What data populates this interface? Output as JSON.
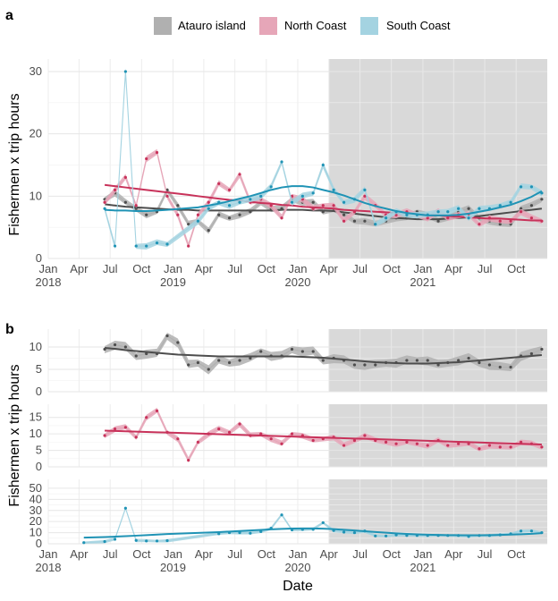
{
  "panel_tags": [
    "a",
    "b"
  ],
  "legend": [
    {
      "name": "Atauro island",
      "color": "#4d4d4d",
      "fill": "#b0b0b0"
    },
    {
      "name": "North Coast",
      "color": "#c8325a",
      "fill": "#e6a6b8"
    },
    {
      "name": "South Coast",
      "color": "#1f93b5",
      "fill": "#a4d3e1"
    }
  ],
  "ylabel": "Fishermen x trip hours",
  "xlabel": "Date",
  "x_ticks": [
    {
      "date": "2018-01",
      "line1": "Jan",
      "line2": "2018"
    },
    {
      "date": "2018-04",
      "line1": "Apr",
      "line2": ""
    },
    {
      "date": "2018-07",
      "line1": "Jul",
      "line2": ""
    },
    {
      "date": "2018-10",
      "line1": "Oct",
      "line2": ""
    },
    {
      "date": "2019-01",
      "line1": "Jan",
      "line2": "2019"
    },
    {
      "date": "2019-04",
      "line1": "Apr",
      "line2": ""
    },
    {
      "date": "2019-07",
      "line1": "Jul",
      "line2": ""
    },
    {
      "date": "2019-10",
      "line1": "Oct",
      "line2": ""
    },
    {
      "date": "2020-01",
      "line1": "Jan",
      "line2": "2020"
    },
    {
      "date": "2020-04",
      "line1": "Apr",
      "line2": ""
    },
    {
      "date": "2020-07",
      "line1": "Jul",
      "line2": ""
    },
    {
      "date": "2020-10",
      "line1": "Oct",
      "line2": ""
    },
    {
      "date": "2021-01",
      "line1": "Jan",
      "line2": "2021"
    },
    {
      "date": "2021-04",
      "line1": "Apr",
      "line2": ""
    },
    {
      "date": "2021-07",
      "line1": "Jul",
      "line2": ""
    },
    {
      "date": "2021-10",
      "line1": "Oct",
      "line2": ""
    }
  ],
  "shaded_period": {
    "start": "2020-04-01",
    "end": "2021-12-31",
    "color": "#d9d9d9"
  },
  "chart_data": [
    {
      "type": "line",
      "panel": "a",
      "xlim": [
        "2018-01-01",
        "2021-12-31"
      ],
      "ylim": [
        0,
        32
      ],
      "y_ticks": [
        0,
        10,
        20,
        30
      ],
      "grid": true,
      "legend_position": "top",
      "series": [
        {
          "name": "Atauro island",
          "x": [
            "2018-06-15",
            "2018-07-15",
            "2018-08-15",
            "2018-09-15",
            "2018-10-15",
            "2018-11-15",
            "2018-12-15",
            "2019-01-15",
            "2019-02-15",
            "2019-03-15",
            "2019-04-15",
            "2019-05-15",
            "2019-06-15",
            "2019-07-15",
            "2019-08-15",
            "2019-09-15",
            "2019-10-15",
            "2019-11-15",
            "2019-12-15",
            "2020-01-15",
            "2020-02-15",
            "2020-03-15",
            "2020-04-15",
            "2020-05-15",
            "2020-06-15",
            "2020-07-15",
            "2020-08-15",
            "2020-09-15",
            "2020-10-15",
            "2020-11-15",
            "2020-12-15",
            "2021-01-15",
            "2021-02-15",
            "2021-03-15",
            "2021-04-15",
            "2021-05-15",
            "2021-06-15",
            "2021-07-15",
            "2021-08-15",
            "2021-09-15",
            "2021-10-15",
            "2021-11-15",
            "2021-12-15"
          ],
          "y": [
            9.5,
            10.5,
            9.0,
            8.0,
            7.0,
            7.5,
            11.0,
            8.5,
            5.5,
            6.0,
            4.5,
            7.0,
            6.5,
            7.0,
            7.5,
            9.0,
            8.0,
            8.0,
            9.5,
            9.0,
            9.0,
            7.5,
            8.0,
            7.0,
            6.0,
            6.0,
            5.5,
            6.0,
            6.5,
            6.5,
            7.5,
            7.0,
            6.0,
            6.5,
            7.5,
            8.0,
            6.5,
            6.0,
            5.5,
            5.5,
            8.0,
            8.5,
            9.5
          ],
          "trend": [
            8.7,
            8.5,
            8.3,
            8.2,
            8.1,
            8.0,
            7.9,
            7.8,
            7.8,
            7.7,
            7.7,
            7.7,
            7.7,
            7.7,
            7.7,
            7.7,
            7.7,
            7.8,
            7.8,
            7.8,
            7.7,
            7.7,
            7.6,
            7.4,
            7.2,
            7.0,
            6.8,
            6.6,
            6.5,
            6.4,
            6.3,
            6.3,
            6.3,
            6.4,
            6.5,
            6.6,
            6.8,
            7.0,
            7.2,
            7.4,
            7.6,
            7.8,
            8.0
          ]
        },
        {
          "name": "North Coast",
          "x": [
            "2018-06-15",
            "2018-07-15",
            "2018-08-15",
            "2018-09-15",
            "2018-10-15",
            "2018-11-15",
            "2018-12-15",
            "2019-01-15",
            "2019-02-15",
            "2019-03-15",
            "2019-04-15",
            "2019-05-15",
            "2019-06-15",
            "2019-07-15",
            "2019-08-15",
            "2019-09-15",
            "2019-10-15",
            "2019-11-15",
            "2019-12-15",
            "2020-01-15",
            "2020-02-15",
            "2020-03-15",
            "2020-04-15",
            "2020-05-15",
            "2020-06-15",
            "2020-07-15",
            "2020-08-15",
            "2020-09-15",
            "2020-10-15",
            "2020-11-15",
            "2020-12-15",
            "2021-01-15",
            "2021-02-15",
            "2021-03-15",
            "2021-04-15",
            "2021-05-15",
            "2021-06-15",
            "2021-07-15",
            "2021-08-15",
            "2021-09-15",
            "2021-10-15",
            "2021-11-15",
            "2021-12-15"
          ],
          "y": [
            9.0,
            11.0,
            13.0,
            8.5,
            16.0,
            17.0,
            10.0,
            7.0,
            2.0,
            7.0,
            9.0,
            12.0,
            11.0,
            13.5,
            9.0,
            9.5,
            8.5,
            6.5,
            10.0,
            9.5,
            8.0,
            8.5,
            8.5,
            6.0,
            7.5,
            10.0,
            8.5,
            7.0,
            7.0,
            7.5,
            7.0,
            6.5,
            7.5,
            6.5,
            7.0,
            7.0,
            5.5,
            6.5,
            6.0,
            6.0,
            7.5,
            6.5,
            6.0
          ],
          "trend": [
            11.8,
            11.6,
            11.4,
            11.2,
            11.0,
            10.8,
            10.6,
            10.4,
            10.2,
            10.0,
            9.8,
            9.6,
            9.4,
            9.3,
            9.1,
            8.9,
            8.8,
            8.6,
            8.5,
            8.3,
            8.2,
            8.1,
            8.0,
            7.8,
            7.7,
            7.6,
            7.5,
            7.4,
            7.3,
            7.2,
            7.1,
            7.0,
            6.9,
            6.8,
            6.7,
            6.6,
            6.5,
            6.4,
            6.4,
            6.3,
            6.2,
            6.1,
            6.1
          ]
        },
        {
          "name": "South Coast",
          "x": [
            "2018-06-15",
            "2018-07-15",
            "2018-08-15",
            "2018-09-15",
            "2018-10-15",
            "2018-11-15",
            "2018-12-15",
            "2019-03-15",
            "2019-04-15",
            "2019-05-15",
            "2019-06-15",
            "2019-07-15",
            "2019-08-15",
            "2019-09-15",
            "2019-10-15",
            "2019-11-15",
            "2019-12-15",
            "2020-01-15",
            "2020-02-15",
            "2020-03-15",
            "2020-04-15",
            "2020-05-15",
            "2020-06-15",
            "2020-07-15",
            "2020-08-15",
            "2020-09-15",
            "2020-10-15",
            "2020-11-15",
            "2020-12-15",
            "2021-01-15",
            "2021-02-15",
            "2021-03-15",
            "2021-04-15",
            "2021-05-15",
            "2021-06-15",
            "2021-07-15",
            "2021-08-15",
            "2021-09-15",
            "2021-10-15",
            "2021-11-15",
            "2021-12-15"
          ],
          "y": [
            8.0,
            2.0,
            30.0,
            2.0,
            2.0,
            2.5,
            2.3,
            6.0,
            8.0,
            9.0,
            8.5,
            9.0,
            9.5,
            10.0,
            11.5,
            15.5,
            9.0,
            10.0,
            10.5,
            15.0,
            11.0,
            9.0,
            9.5,
            11.0,
            5.5,
            6.5,
            7.5,
            7.0,
            7.0,
            7.0,
            7.5,
            7.5,
            8.0,
            6.5,
            8.0,
            8.0,
            8.5,
            9.0,
            11.5,
            11.5,
            10.5
          ],
          "trend": [
            7.8,
            7.7,
            7.7,
            7.6,
            7.6,
            7.7,
            7.8,
            8.2,
            8.5,
            8.8,
            9.2,
            9.6,
            10.0,
            10.5,
            11.0,
            11.4,
            11.6,
            11.6,
            11.4,
            11.0,
            10.6,
            10.1,
            9.5,
            8.9,
            8.4,
            8.0,
            7.6,
            7.3,
            7.1,
            6.9,
            6.9,
            6.9,
            7.0,
            7.2,
            7.5,
            7.8,
            8.2,
            8.6,
            9.2,
            9.9,
            10.8
          ]
        }
      ]
    },
    {
      "type": "line",
      "panel": "b",
      "facet": "Atauro island",
      "ylim": [
        0,
        14
      ],
      "y_ticks": [
        0,
        5,
        10
      ],
      "series": [
        {
          "name": "Atauro island",
          "x": [
            "2018-06-15",
            "2018-07-15",
            "2018-08-15",
            "2018-09-15",
            "2018-10-15",
            "2018-11-15",
            "2018-12-15",
            "2019-01-15",
            "2019-02-15",
            "2019-03-15",
            "2019-04-15",
            "2019-05-15",
            "2019-06-15",
            "2019-07-15",
            "2019-08-15",
            "2019-09-15",
            "2019-10-15",
            "2019-11-15",
            "2019-12-15",
            "2020-01-15",
            "2020-02-15",
            "2020-03-15",
            "2020-04-15",
            "2020-05-15",
            "2020-06-15",
            "2020-07-15",
            "2020-08-15",
            "2020-09-15",
            "2020-10-15",
            "2020-11-15",
            "2020-12-15",
            "2021-01-15",
            "2021-02-15",
            "2021-03-15",
            "2021-04-15",
            "2021-05-15",
            "2021-06-15",
            "2021-07-15",
            "2021-08-15",
            "2021-09-15",
            "2021-10-15",
            "2021-11-15",
            "2021-12-15"
          ],
          "y": [
            9.5,
            10.5,
            10.0,
            8.0,
            8.5,
            8.5,
            12.5,
            11.0,
            6.0,
            6.5,
            5.0,
            7.0,
            6.5,
            7.0,
            7.5,
            9.0,
            8.0,
            8.0,
            9.5,
            9.0,
            9.0,
            7.0,
            7.5,
            7.0,
            6.0,
            6.0,
            6.0,
            6.5,
            6.5,
            7.0,
            7.0,
            7.0,
            6.0,
            6.5,
            7.0,
            7.5,
            6.5,
            6.0,
            5.5,
            5.5,
            8.0,
            8.5,
            9.5
          ],
          "trend": [
            9.8,
            9.6,
            9.3,
            9.1,
            8.9,
            8.7,
            8.5,
            8.3,
            8.2,
            8.1,
            8.0,
            7.9,
            7.9,
            7.9,
            7.9,
            7.9,
            7.9,
            7.9,
            7.9,
            7.8,
            7.7,
            7.6,
            7.4,
            7.2,
            7.0,
            6.8,
            6.6,
            6.5,
            6.4,
            6.3,
            6.3,
            6.3,
            6.4,
            6.5,
            6.6,
            6.8,
            7.0,
            7.2,
            7.4,
            7.6,
            7.8,
            8.0,
            8.2
          ]
        }
      ]
    },
    {
      "type": "line",
      "panel": "b",
      "facet": "North Coast",
      "ylim": [
        0,
        19
      ],
      "y_ticks": [
        0,
        5,
        10,
        15
      ],
      "series": [
        {
          "name": "North Coast",
          "x": [
            "2018-06-15",
            "2018-07-15",
            "2018-08-15",
            "2018-09-15",
            "2018-10-15",
            "2018-11-15",
            "2018-12-15",
            "2019-01-15",
            "2019-02-15",
            "2019-03-15",
            "2019-04-15",
            "2019-05-15",
            "2019-06-15",
            "2019-07-15",
            "2019-08-15",
            "2019-09-15",
            "2019-10-15",
            "2019-11-15",
            "2019-12-15",
            "2020-01-15",
            "2020-02-15",
            "2020-03-15",
            "2020-04-15",
            "2020-05-15",
            "2020-06-15",
            "2020-07-15",
            "2020-08-15",
            "2020-09-15",
            "2020-10-15",
            "2020-11-15",
            "2020-12-15",
            "2021-01-15",
            "2021-02-15",
            "2021-03-15",
            "2021-04-15",
            "2021-05-15",
            "2021-06-15",
            "2021-07-15",
            "2021-08-15",
            "2021-09-15",
            "2021-10-15",
            "2021-11-15",
            "2021-12-15"
          ],
          "y": [
            9.5,
            11.5,
            12.0,
            9.0,
            15.0,
            17.0,
            10.5,
            8.5,
            2.0,
            7.5,
            10.0,
            11.5,
            10.5,
            13.0,
            9.5,
            10.0,
            8.5,
            7.0,
            10.0,
            9.5,
            8.0,
            8.5,
            9.0,
            6.5,
            8.0,
            9.5,
            8.0,
            7.5,
            7.0,
            7.5,
            7.0,
            6.5,
            8.0,
            6.5,
            7.0,
            7.0,
            5.5,
            6.5,
            6.0,
            6.0,
            7.5,
            7.0,
            6.0
          ],
          "trend": [
            11.0,
            10.9,
            10.8,
            10.7,
            10.6,
            10.5,
            10.4,
            10.3,
            10.2,
            10.1,
            10.0,
            9.9,
            9.8,
            9.7,
            9.6,
            9.5,
            9.4,
            9.3,
            9.2,
            9.1,
            9.0,
            8.9,
            8.8,
            8.7,
            8.6,
            8.5,
            8.4,
            8.3,
            8.2,
            8.1,
            8.0,
            7.9,
            7.8,
            7.7,
            7.6,
            7.5,
            7.4,
            7.3,
            7.2,
            7.1,
            7.0,
            6.9,
            6.8
          ]
        }
      ]
    },
    {
      "type": "line",
      "panel": "b",
      "facet": "South Coast",
      "ylim": [
        0,
        58
      ],
      "y_ticks": [
        0,
        10,
        20,
        30,
        40,
        50
      ],
      "series": [
        {
          "name": "South Coast",
          "x": [
            "2018-04-15",
            "2018-06-15",
            "2018-07-15",
            "2018-08-15",
            "2018-09-15",
            "2018-10-15",
            "2018-11-15",
            "2018-12-15",
            "2019-05-15",
            "2019-06-15",
            "2019-07-15",
            "2019-08-15",
            "2019-09-15",
            "2019-10-15",
            "2019-11-15",
            "2019-12-15",
            "2020-01-15",
            "2020-02-15",
            "2020-03-15",
            "2020-04-15",
            "2020-05-15",
            "2020-06-15",
            "2020-07-15",
            "2020-08-15",
            "2020-09-15",
            "2020-10-15",
            "2020-11-15",
            "2020-12-15",
            "2021-01-15",
            "2021-02-15",
            "2021-03-15",
            "2021-04-15",
            "2021-05-15",
            "2021-06-15",
            "2021-07-15",
            "2021-08-15",
            "2021-09-15",
            "2021-10-15",
            "2021-11-15",
            "2021-12-15"
          ],
          "y": [
            1.0,
            2.0,
            4.0,
            32.0,
            3.0,
            2.5,
            2.5,
            2.8,
            9.0,
            10.0,
            10.0,
            9.5,
            11.0,
            14.0,
            26.0,
            12.5,
            13.0,
            13.0,
            19.0,
            12.0,
            10.5,
            10.0,
            11.5,
            7.0,
            7.0,
            8.0,
            7.5,
            7.5,
            7.5,
            7.5,
            7.5,
            7.5,
            6.5,
            7.5,
            7.5,
            8.0,
            9.0,
            11.5,
            11.5,
            10.0
          ],
          "trend": [
            5.5,
            6.0,
            6.4,
            6.8,
            7.3,
            7.8,
            8.3,
            8.8,
            10.5,
            11.0,
            11.5,
            12.0,
            12.5,
            13.0,
            13.4,
            13.7,
            13.8,
            13.8,
            13.6,
            13.2,
            12.6,
            12.0,
            11.3,
            10.6,
            10.0,
            9.4,
            8.9,
            8.5,
            8.2,
            8.0,
            7.8,
            7.7,
            7.7,
            7.7,
            7.8,
            8.0,
            8.3,
            8.6,
            9.0,
            9.6
          ]
        }
      ]
    }
  ]
}
